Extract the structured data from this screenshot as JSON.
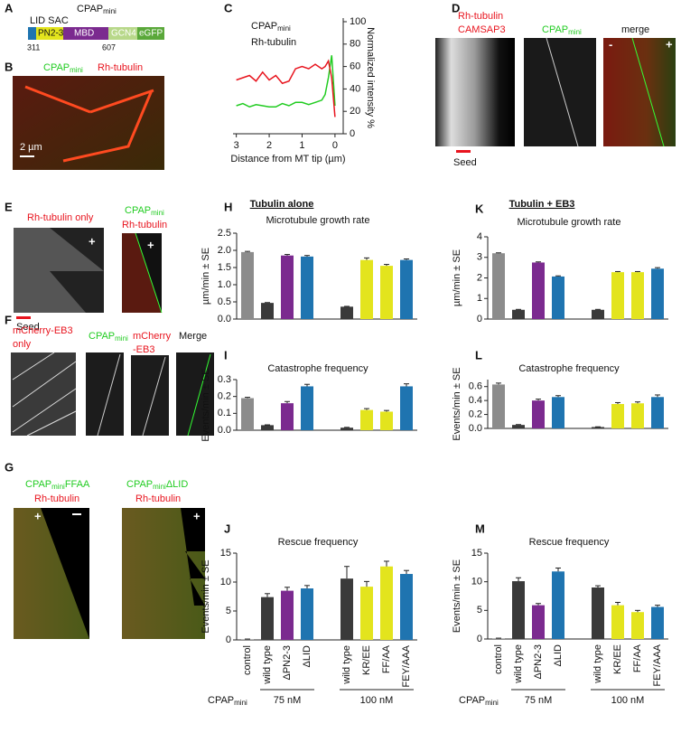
{
  "panels": {
    "letters": [
      "A",
      "B",
      "C",
      "D",
      "E",
      "F",
      "G"
    ],
    "A": {
      "title": {
        "text": "CPAP",
        "sub": "mini"
      },
      "top": "LID SAC",
      "domains": [
        "PN2-3",
        "MBD",
        "GCN4",
        "eGFP"
      ],
      "numbers": [
        "311",
        "607"
      ]
    },
    "B": {
      "labels": [
        {
          "text": "CPAP",
          "sub": "mini"
        },
        "Rh-tubulin"
      ],
      "scale": "2 µm"
    },
    "D": {
      "labels": [
        "Rh-tubulin",
        "CAMSAP3",
        {
          "text": "CPAP",
          "sub": "mini"
        },
        "merge"
      ],
      "seed": "Seed",
      "ends": [
        "-",
        "+"
      ]
    },
    "E": {
      "left": "Rh-tubulin only",
      "right": [
        {
          "text": "CPAP",
          "sub": "mini"
        },
        "Rh-tubulin"
      ],
      "seed": "Seed",
      "plus": "+"
    },
    "F": {
      "labels": [
        "mCherry-EB3",
        "only",
        {
          "text": "CPAP",
          "sub": "mini"
        },
        "mCherry",
        "-EB3",
        "Merge"
      ]
    },
    "G": {
      "left": [
        {
          "text": "CPAP",
          "sub": "mini",
          "suffix": "FFAA"
        },
        "Rh-tubulin"
      ],
      "right": [
        {
          "text": "CPAP",
          "sub": "mini",
          "suffix": "ΔLID"
        },
        "Rh-tubulin"
      ],
      "plus": "+"
    },
    "headers": [
      "Tubulin alone",
      "Tubulin + EB3"
    ]
  },
  "chart_data": [
    {
      "type": "line",
      "label": "C",
      "xlabel": "Distance from MT tip (µm)",
      "ylabel": "Normalized intensity %",
      "y_axis_position": "right",
      "x": [
        3.0,
        2.8,
        2.6,
        2.4,
        2.2,
        2.0,
        1.8,
        1.6,
        1.4,
        1.2,
        1.0,
        0.8,
        0.6,
        0.4,
        0.3,
        0.2,
        0.1,
        0.0
      ],
      "series": [
        {
          "name": "CPAP",
          "name_sub": "mini",
          "color": "#22cc22",
          "values": [
            25,
            27,
            24,
            26,
            25,
            24,
            24,
            27,
            25,
            28,
            28,
            26,
            28,
            30,
            35,
            50,
            70,
            25
          ]
        },
        {
          "name": "Rh-tubulin",
          "color": "#e8141e",
          "values": [
            48,
            50,
            52,
            47,
            55,
            48,
            52,
            45,
            47,
            58,
            60,
            58,
            62,
            58,
            60,
            65,
            50,
            15
          ]
        }
      ],
      "xlim": [
        3.1,
        -0.25
      ],
      "xticks": [
        3,
        2,
        1,
        0
      ],
      "ylim": [
        0,
        100
      ],
      "yticks": [
        0,
        20,
        40,
        60,
        80,
        100
      ]
    },
    {
      "type": "bar",
      "label": "H",
      "title": "Microtubule growth rate",
      "ylabel": "µm/min ± SE",
      "values": [
        1.95,
        0.47,
        1.85,
        1.82,
        0.36,
        1.72,
        1.55,
        1.72
      ],
      "errors": [
        0.02,
        0.01,
        0.03,
        0.03,
        0.01,
        0.06,
        0.04,
        0.03
      ],
      "colors": [
        "#8c8c8c",
        "#3a3a3a",
        "#7b2a8f",
        "#1f74b0",
        "#3a3a3a",
        "#e3e41d",
        "#e3e41d",
        "#1f74b0"
      ],
      "ylim": [
        0,
        2.5
      ],
      "yticks": [
        {
          "value": 0,
          "label": "0.0"
        },
        0.5,
        {
          "value": 1,
          "label": "1.0"
        },
        1.5,
        {
          "value": 2,
          "label": "2.0"
        },
        2.5
      ]
    },
    {
      "type": "bar",
      "label": "I",
      "title": "Catastrophe frequency",
      "ylabel": "Events/min ± SE",
      "values": [
        0.19,
        0.03,
        0.16,
        0.26,
        0.015,
        0.12,
        0.11,
        0.26
      ],
      "errors": [
        0.005,
        0.002,
        0.01,
        0.012,
        0.002,
        0.008,
        0.007,
        0.015
      ],
      "colors": [
        "#8c8c8c",
        "#3a3a3a",
        "#7b2a8f",
        "#1f74b0",
        "#3a3a3a",
        "#e3e41d",
        "#e3e41d",
        "#1f74b0"
      ],
      "ylim": [
        0,
        0.3
      ],
      "yticks": [
        {
          "value": 0,
          "label": "0.0"
        },
        0.1,
        0.2,
        0.3
      ]
    },
    {
      "type": "bar",
      "label": "J",
      "title": "Rescue frequency",
      "ylabel": "Events/min ± SE",
      "categories": [
        "control",
        "wild type",
        "ΔPN2-3",
        "ΔLID",
        "wild type",
        "KR/EE",
        "FF/AA",
        "FEY/AAA"
      ],
      "values": [
        0.1,
        7.4,
        8.5,
        8.9,
        10.6,
        9.2,
        12.7,
        11.4
      ],
      "errors": [
        0.05,
        0.6,
        0.6,
        0.5,
        2.1,
        0.9,
        0.9,
        0.6
      ],
      "colors": [
        "#8c8c8c",
        "#3a3a3a",
        "#7b2a8f",
        "#1f74b0",
        "#3a3a3a",
        "#e3e41d",
        "#e3e41d",
        "#1f74b0"
      ],
      "ylim": [
        0,
        15
      ],
      "yticks": [
        0,
        5,
        10,
        15
      ],
      "group_prefix": {
        "text": "CPAP",
        "sub": "mini"
      },
      "groups": [
        "75 nM",
        "100 nM"
      ]
    },
    {
      "type": "bar",
      "label": "K",
      "title": "Microtubule growth rate",
      "ylabel": "µm/min ± SE",
      "values": [
        3.2,
        0.45,
        2.75,
        2.07,
        0.45,
        2.28,
        2.28,
        2.45
      ],
      "errors": [
        0.02,
        0.02,
        0.03,
        0.03,
        0.02,
        0.03,
        0.03,
        0.05
      ],
      "colors": [
        "#8c8c8c",
        "#3a3a3a",
        "#7b2a8f",
        "#1f74b0",
        "#3a3a3a",
        "#e3e41d",
        "#e3e41d",
        "#1f74b0"
      ],
      "ylim": [
        0,
        4
      ],
      "yticks": [
        0,
        1,
        2,
        3,
        4
      ]
    },
    {
      "type": "bar",
      "label": "L",
      "title": "Catastrophe frequency",
      "ylabel": "Events/min ± SE",
      "values": [
        0.63,
        0.05,
        0.4,
        0.45,
        0.02,
        0.35,
        0.36,
        0.45
      ],
      "errors": [
        0.02,
        0.005,
        0.02,
        0.02,
        0.003,
        0.02,
        0.02,
        0.03
      ],
      "colors": [
        "#8c8c8c",
        "#3a3a3a",
        "#7b2a8f",
        "#1f74b0",
        "#3a3a3a",
        "#e3e41d",
        "#e3e41d",
        "#1f74b0"
      ],
      "ylim": [
        0,
        0.7
      ],
      "yticks": [
        {
          "value": 0,
          "label": "0.0"
        },
        0.2,
        0.4,
        0.6
      ]
    },
    {
      "type": "bar",
      "label": "M",
      "title": "Rescue frequency",
      "ylabel": "Events/min ± SE",
      "categories": [
        "control",
        "wild type",
        "ΔPN2-3",
        "ΔLID",
        "wild type",
        "KR/EE",
        "FF/AA",
        "FEY/AAA"
      ],
      "values": [
        0.1,
        10.1,
        5.9,
        11.8,
        9.0,
        5.9,
        4.7,
        5.6
      ],
      "errors": [
        0.05,
        0.6,
        0.3,
        0.6,
        0.3,
        0.5,
        0.3,
        0.3
      ],
      "colors": [
        "#8c8c8c",
        "#3a3a3a",
        "#7b2a8f",
        "#1f74b0",
        "#3a3a3a",
        "#e3e41d",
        "#e3e41d",
        "#1f74b0"
      ],
      "ylim": [
        0,
        15
      ],
      "yticks": [
        0,
        5,
        10,
        15
      ],
      "group_prefix": {
        "text": "CPAP",
        "sub": "mini"
      },
      "groups": [
        "75 nM",
        "100 nM"
      ]
    }
  ]
}
